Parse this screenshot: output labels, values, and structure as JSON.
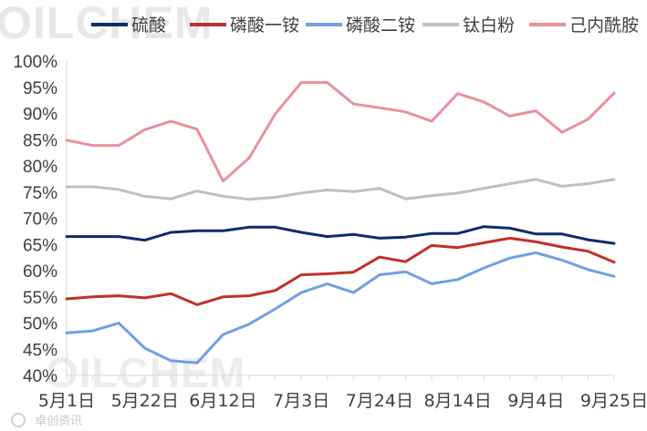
{
  "watermark": {
    "top_text": "OILCHEM",
    "bottom_text": "OILCHEM",
    "footer_text": "卓创资讯"
  },
  "chart_data": {
    "type": "line",
    "title": "",
    "xlabel": "",
    "ylabel": "",
    "x": [
      "5月1日",
      "5月8日",
      "5月15日",
      "5月22日",
      "5月29日",
      "6月5日",
      "6月12日",
      "6月19日",
      "6月26日",
      "7月3日",
      "7月10日",
      "7月17日",
      "7月24日",
      "7月31日",
      "8月7日",
      "8月14日",
      "8月21日",
      "8月28日",
      "9月4日",
      "9月11日",
      "9月18日",
      "9月25日"
    ],
    "x_tick_labels": [
      "5月1日",
      "5月22日",
      "6月12日",
      "7月3日",
      "7月24日",
      "8月14日",
      "9月4日",
      "9月25日"
    ],
    "x_tick_every": 3,
    "ylim": [
      0.4,
      1.0
    ],
    "yticks": [
      0.4,
      0.45,
      0.5,
      0.55,
      0.6,
      0.65,
      0.7,
      0.75,
      0.8,
      0.85,
      0.9,
      0.95,
      1.0
    ],
    "ytick_labels": [
      "40%",
      "45%",
      "50%",
      "55%",
      "60%",
      "65%",
      "70%",
      "75%",
      "80%",
      "85%",
      "90%",
      "95%",
      "100%"
    ],
    "grid": false,
    "legend_position": "top",
    "series": [
      {
        "name": "硫酸",
        "color": "#0d2c6e",
        "values": [
          0.665,
          0.665,
          0.665,
          0.658,
          0.673,
          0.676,
          0.676,
          0.683,
          0.683,
          0.673,
          0.665,
          0.669,
          0.662,
          0.664,
          0.671,
          0.671,
          0.684,
          0.681,
          0.67,
          0.67,
          0.659,
          0.652
        ]
      },
      {
        "name": "磷酸一铵",
        "color": "#c0302b",
        "values": [
          0.546,
          0.55,
          0.552,
          0.548,
          0.556,
          0.535,
          0.55,
          0.552,
          0.562,
          0.592,
          0.594,
          0.597,
          0.626,
          0.617,
          0.648,
          0.644,
          0.653,
          0.662,
          0.655,
          0.645,
          0.637,
          0.616
        ]
      },
      {
        "name": "磷酸二铵",
        "color": "#6fa0e6",
        "values": [
          0.481,
          0.485,
          0.5,
          0.452,
          0.428,
          0.424,
          0.478,
          0.498,
          0.527,
          0.558,
          0.575,
          0.558,
          0.592,
          0.598,
          0.575,
          0.583,
          0.605,
          0.624,
          0.634,
          0.62,
          0.602,
          0.589
        ]
      },
      {
        "name": "钛白粉",
        "color": "#bfbfbf",
        "values": [
          0.76,
          0.76,
          0.755,
          0.742,
          0.737,
          0.752,
          0.742,
          0.736,
          0.74,
          0.748,
          0.754,
          0.751,
          0.757,
          0.737,
          0.743,
          0.748,
          0.757,
          0.766,
          0.774,
          0.761,
          0.766,
          0.774
        ]
      },
      {
        "name": "己内酰胺",
        "color": "#e9909c",
        "values": [
          0.849,
          0.839,
          0.839,
          0.869,
          0.885,
          0.87,
          0.771,
          0.815,
          0.899,
          0.959,
          0.959,
          0.918,
          0.911,
          0.903,
          0.885,
          0.938,
          0.922,
          0.895,
          0.905,
          0.864,
          0.889,
          0.939
        ]
      }
    ]
  }
}
